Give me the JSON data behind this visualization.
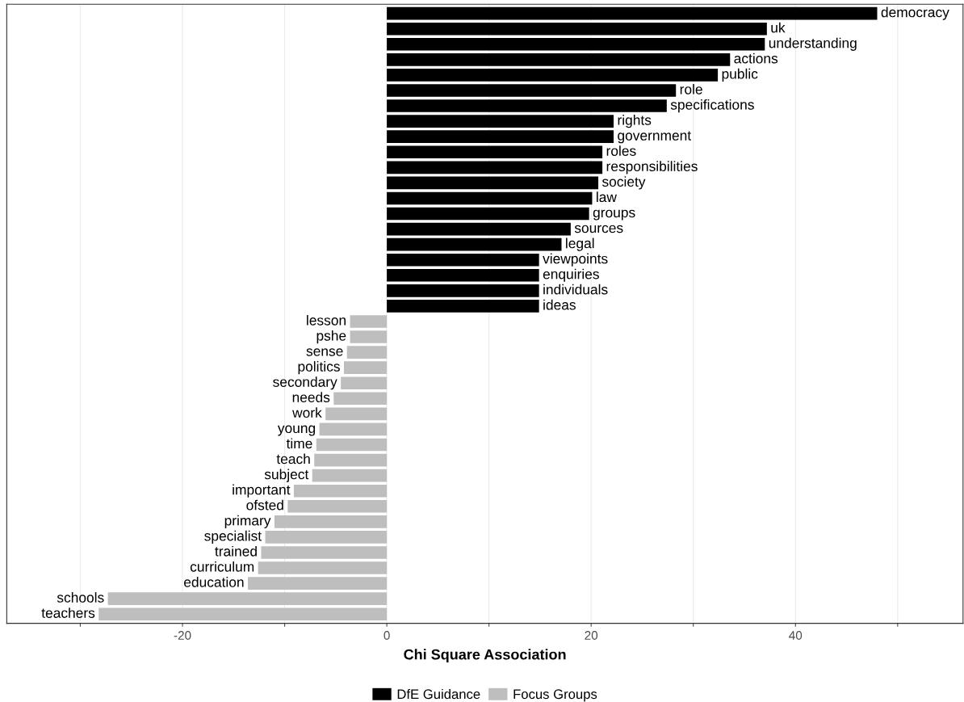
{
  "chart_data": {
    "type": "bar",
    "orientation": "horizontal",
    "xlabel": "Chi Square Association",
    "categories": [
      "democracy",
      "uk",
      "understanding",
      "actions",
      "public",
      "role",
      "specifications",
      "rights",
      "government",
      "roles",
      "responsibilities",
      "society",
      "law",
      "groups",
      "sources",
      "legal",
      "viewpoints",
      "enquiries",
      "individuals",
      "ideas",
      "lesson",
      "pshe",
      "sense",
      "politics",
      "secondary",
      "needs",
      "work",
      "young",
      "time",
      "teach",
      "subject",
      "important",
      "ofsted",
      "primary",
      "specialist",
      "trained",
      "curriculum",
      "education",
      "schools",
      "teachers"
    ],
    "series": [
      {
        "name": "DfE Guidance",
        "color": "#000000",
        "values": [
          48.0,
          37.2,
          37.0,
          33.6,
          32.4,
          28.3,
          27.4,
          22.2,
          22.2,
          21.1,
          21.1,
          20.7,
          20.1,
          19.8,
          18.0,
          17.1,
          14.9,
          14.9,
          14.9,
          14.9,
          null,
          null,
          null,
          null,
          null,
          null,
          null,
          null,
          null,
          null,
          null,
          null,
          null,
          null,
          null,
          null,
          null,
          null,
          null,
          null
        ]
      },
      {
        "name": "Focus Groups",
        "color": "#bebebe",
        "values": [
          null,
          null,
          null,
          null,
          null,
          null,
          null,
          null,
          null,
          null,
          null,
          null,
          null,
          null,
          null,
          null,
          null,
          null,
          null,
          null,
          -3.6,
          -3.6,
          -3.9,
          -4.2,
          -4.5,
          -5.2,
          -6.0,
          -6.6,
          -6.9,
          -7.1,
          -7.3,
          -9.1,
          -9.7,
          -11.0,
          -11.9,
          -12.3,
          -12.6,
          -13.6,
          -27.3,
          -28.2
        ]
      }
    ],
    "xlim": [
      -37.2,
      56.4
    ],
    "xticks": [
      {
        "value": -30,
        "label": null
      },
      -20,
      {
        "value": -10,
        "label": null
      },
      0,
      {
        "value": 10,
        "label": null
      },
      20,
      {
        "value": 30,
        "label": null
      },
      40,
      {
        "value": 50,
        "label": null
      }
    ],
    "grid": "x",
    "legend": "bottom",
    "tick_labels": "x"
  }
}
